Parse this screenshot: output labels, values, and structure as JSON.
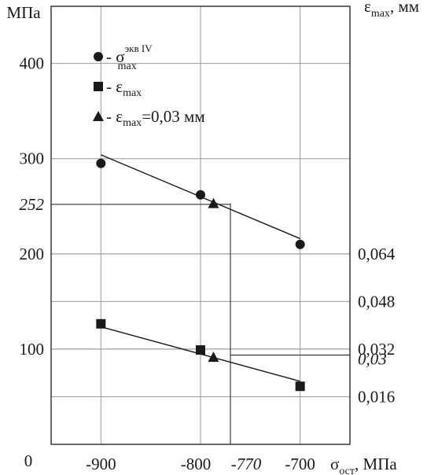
{
  "chart_data": {
    "type": "scatter",
    "left_axis": {
      "label": "МПа",
      "zero_label": "0",
      "ylim": [
        0,
        460
      ],
      "ticks": [
        100,
        200,
        300,
        400
      ],
      "tick_labels": [
        "100",
        "200",
        "300",
        "400"
      ],
      "special": {
        "value": 252,
        "label": "252"
      }
    },
    "right_axis": {
      "label_base": "ε",
      "label_sub": "max",
      "label_suffix": ", мм",
      "ylim": [
        0,
        0.1472
      ],
      "ticks": [
        0.016,
        0.032,
        0.048,
        0.064
      ],
      "tick_labels": [
        "0,016",
        "0,032",
        "0,048",
        "0,064"
      ],
      "special": {
        "value": 0.03,
        "label": "0,03"
      }
    },
    "x_axis": {
      "label_base": "σ",
      "label_sub": "ост",
      "label_suffix": ", МПа",
      "xlim": [
        -950,
        -650
      ],
      "ticks": [
        -900,
        -800,
        -700
      ],
      "tick_labels": [
        "-900",
        "-800",
        "-700"
      ],
      "special": {
        "value": -770,
        "label": "-770"
      }
    },
    "grid": true,
    "legend": {
      "placement": "top-left",
      "entries": [
        {
          "marker": "circle",
          "prefix": "- ",
          "base": "σ",
          "sub": "max",
          "sup": "экв IV",
          "suffix": ""
        },
        {
          "marker": "square",
          "prefix": "- ",
          "base": "ε",
          "sub": "max",
          "sup": "",
          "suffix": ""
        },
        {
          "marker": "triangle",
          "prefix": "- ",
          "base": "ε",
          "sub": "max",
          "sup": "",
          "suffix": "=0,03 мм"
        }
      ]
    },
    "series": [
      {
        "marker": "circle",
        "axis": "left",
        "points": [
          {
            "x": -900,
            "y": 295
          },
          {
            "x": -800,
            "y": 262
          },
          {
            "x": -700,
            "y": 210
          }
        ],
        "trend": [
          {
            "x": -900,
            "y": 304
          },
          {
            "x": -700,
            "y": 216
          }
        ]
      },
      {
        "marker": "square",
        "axis": "right",
        "points": [
          {
            "x": -900,
            "y": 0.0405
          },
          {
            "x": -800,
            "y": 0.0317
          },
          {
            "x": -700,
            "y": 0.0195
          }
        ],
        "trend": [
          {
            "x": -900,
            "y": 0.0395
          },
          {
            "x": -700,
            "y": 0.0212
          }
        ]
      },
      {
        "marker": "triangle",
        "axis": "left",
        "points": [
          {
            "x": -787,
            "y": 253
          }
        ]
      },
      {
        "marker": "triangle",
        "axis": "right",
        "points": [
          {
            "x": -787,
            "y": 0.0293
          }
        ]
      }
    ],
    "guides": [
      {
        "type": "vertical",
        "x": -770,
        "from_left": 0,
        "to_left": 253
      },
      {
        "type": "horizontal",
        "left_y": 252,
        "from_x": -950,
        "to_x": -770
      },
      {
        "type": "horizontal",
        "right_y": 0.03,
        "from_x": -770,
        "to_x": -650
      }
    ]
  }
}
